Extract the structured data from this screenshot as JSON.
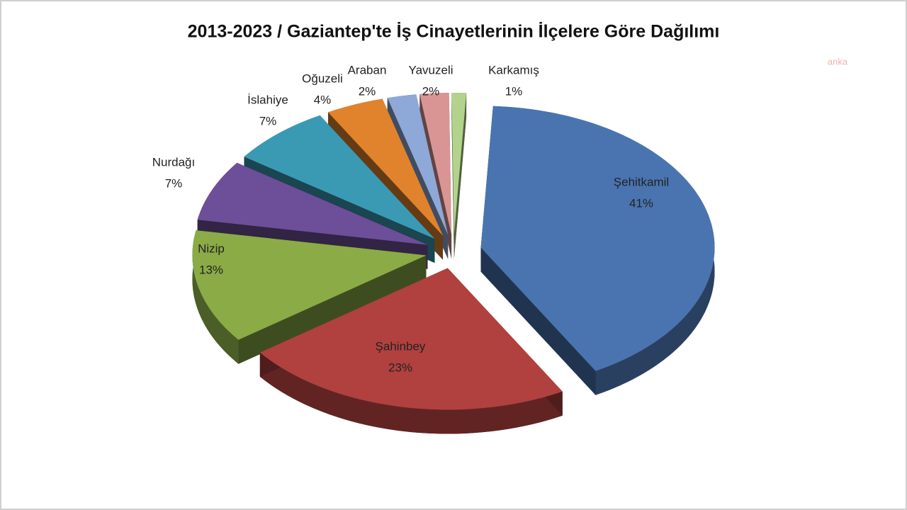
{
  "chart_data": {
    "type": "pie",
    "title": "2013-2023 / Gaziantep'te  İş Cinayetlerinin İlçelere Göre Dağılımı",
    "watermark": "anka",
    "categories": [
      "Şehitkamil",
      "Şahinbey",
      "Nizip",
      "Nurdağı",
      "İslahiye",
      "Oğuzeli",
      "Araban",
      "Yavuzeli",
      "Karkamış"
    ],
    "values": [
      41,
      23,
      13,
      7,
      7,
      4,
      2,
      2,
      1
    ],
    "value_labels": [
      "41%",
      "23%",
      "13%",
      "7%",
      "7%",
      "4%",
      "2%",
      "2%",
      "1%"
    ],
    "colors": [
      "#4a74b0",
      "#b0413f",
      "#8aab46",
      "#6c4f98",
      "#3a9ab4",
      "#e0832c",
      "#8ea8d8",
      "#d99594",
      "#b3d38c"
    ]
  }
}
